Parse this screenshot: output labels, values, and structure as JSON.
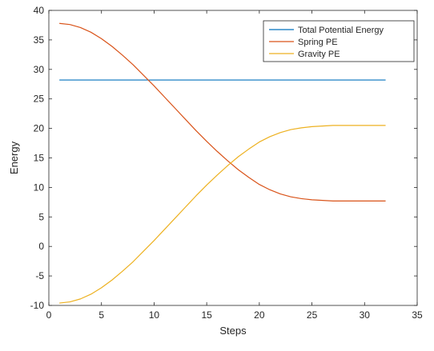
{
  "chart_data": {
    "type": "line",
    "title": "",
    "xlabel": "Steps",
    "ylabel": "Energy",
    "xlim": [
      0,
      35
    ],
    "ylim": [
      -10,
      40
    ],
    "xticks": [
      0,
      5,
      10,
      15,
      20,
      25,
      30,
      35
    ],
    "yticks": [
      -10,
      -5,
      0,
      5,
      10,
      15,
      20,
      25,
      30,
      35,
      40
    ],
    "grid": false,
    "legend_position": "top-right",
    "series": [
      {
        "name": "Total Potential Energy",
        "color": "#0072BD",
        "x": [
          1,
          2,
          3,
          4,
          5,
          6,
          7,
          8,
          9,
          10,
          11,
          12,
          13,
          14,
          15,
          16,
          17,
          18,
          19,
          20,
          21,
          22,
          23,
          24,
          25,
          26,
          27,
          28,
          29,
          30,
          31,
          32
        ],
        "values": [
          28.2,
          28.2,
          28.2,
          28.2,
          28.2,
          28.2,
          28.2,
          28.2,
          28.2,
          28.2,
          28.2,
          28.2,
          28.2,
          28.2,
          28.2,
          28.2,
          28.2,
          28.2,
          28.2,
          28.2,
          28.2,
          28.2,
          28.2,
          28.2,
          28.2,
          28.2,
          28.2,
          28.2,
          28.2,
          28.2,
          28.2,
          28.2
        ]
      },
      {
        "name": "Spring PE",
        "color": "#D95319",
        "x": [
          1,
          2,
          3,
          4,
          5,
          6,
          7,
          8,
          9,
          10,
          11,
          12,
          13,
          14,
          15,
          16,
          17,
          18,
          19,
          20,
          21,
          22,
          23,
          24,
          25,
          26,
          27,
          28,
          29,
          30,
          31,
          32
        ],
        "values": [
          37.8,
          37.6,
          37.1,
          36.3,
          35.2,
          33.9,
          32.4,
          30.8,
          29.0,
          27.2,
          25.3,
          23.4,
          21.5,
          19.6,
          17.8,
          16.1,
          14.5,
          13.0,
          11.7,
          10.5,
          9.6,
          8.9,
          8.4,
          8.1,
          7.9,
          7.8,
          7.7,
          7.7,
          7.7,
          7.7,
          7.7,
          7.7
        ]
      },
      {
        "name": "Gravity PE",
        "color": "#EDB120",
        "x": [
          1,
          2,
          3,
          4,
          5,
          6,
          7,
          8,
          9,
          10,
          11,
          12,
          13,
          14,
          15,
          16,
          17,
          18,
          19,
          20,
          21,
          22,
          23,
          24,
          25,
          26,
          27,
          28,
          29,
          30,
          31,
          32
        ],
        "values": [
          -9.6,
          -9.4,
          -8.9,
          -8.1,
          -7.0,
          -5.7,
          -4.2,
          -2.6,
          -0.8,
          1.0,
          2.9,
          4.8,
          6.7,
          8.6,
          10.4,
          12.1,
          13.7,
          15.2,
          16.5,
          17.7,
          18.6,
          19.3,
          19.8,
          20.1,
          20.3,
          20.4,
          20.5,
          20.5,
          20.5,
          20.5,
          20.5,
          20.5
        ]
      }
    ]
  }
}
